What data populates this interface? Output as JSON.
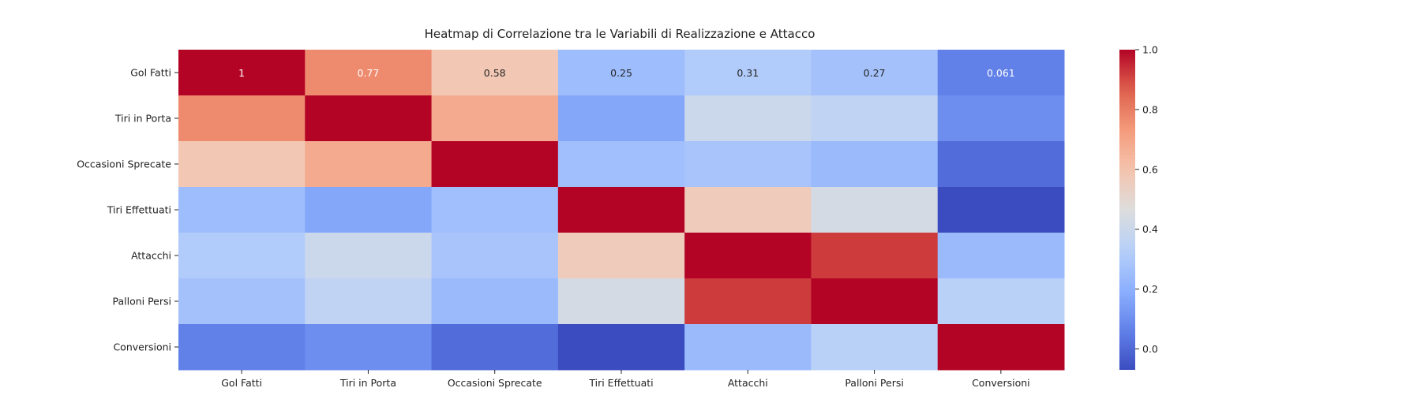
{
  "chart_data": {
    "type": "heatmap",
    "title": "Heatmap di Correlazione tra le Variabili di Realizzazione e Attacco",
    "row_labels": [
      "Gol Fatti",
      "Tiri in Porta",
      "Occasioni Sprecate",
      "Tiri Effettuati",
      "Attacchi",
      "Palloni Persi",
      "Conversioni"
    ],
    "col_labels": [
      "Gol Fatti",
      "Tiri in Porta",
      "Occasioni Sprecate",
      "Tiri Effettuati",
      "Attacchi",
      "Palloni Persi",
      "Conversioni"
    ],
    "values": [
      [
        1.0,
        0.77,
        0.58,
        0.25,
        0.31,
        0.27,
        0.061
      ],
      [
        0.77,
        1.0,
        0.68,
        0.17,
        0.4,
        0.36,
        0.1
      ],
      [
        0.58,
        0.68,
        1.0,
        0.26,
        0.28,
        0.24,
        0.01
      ],
      [
        0.25,
        0.17,
        0.26,
        1.0,
        0.56,
        0.43,
        -0.07
      ],
      [
        0.31,
        0.4,
        0.28,
        0.56,
        1.0,
        0.92,
        0.24
      ],
      [
        0.27,
        0.36,
        0.24,
        0.43,
        0.92,
        1.0,
        0.34
      ],
      [
        0.061,
        0.1,
        0.01,
        -0.07,
        0.24,
        0.34,
        1.0
      ]
    ],
    "annotated_row": 0,
    "annotations": [
      "1",
      "0.77",
      "0.58",
      "0.25",
      "0.31",
      "0.27",
      "0.061"
    ],
    "colormap": "coolwarm",
    "vmin": -0.07,
    "vmax": 1.0,
    "colorbar_ticks": [
      "0.0",
      "0.2",
      "0.4",
      "0.6",
      "0.8",
      "1.0"
    ],
    "colorbar_tick_values": [
      0.0,
      0.2,
      0.4,
      0.6,
      0.8,
      1.0
    ]
  }
}
